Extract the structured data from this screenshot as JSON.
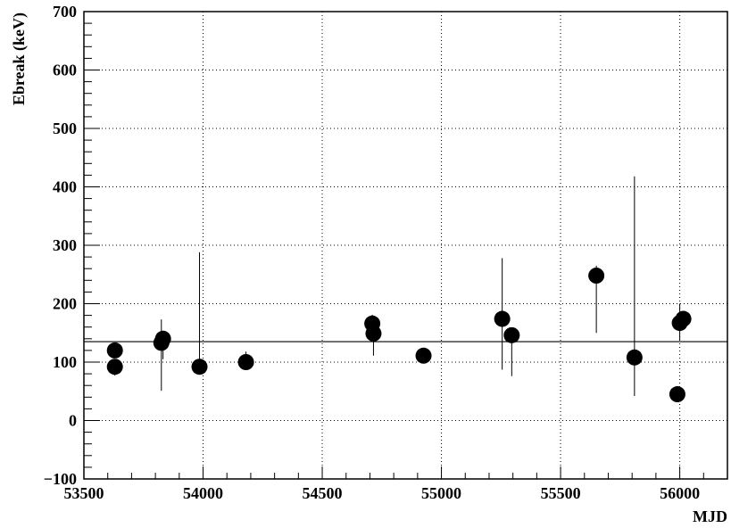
{
  "chart_data": {
    "type": "scatter",
    "title": "",
    "xlabel": "MJD",
    "ylabel": "Ebreak (keV)",
    "xlim": [
      53500,
      56200
    ],
    "ylim": [
      -100,
      700
    ],
    "x_ticks": [
      53500,
      54000,
      54500,
      55000,
      55500,
      56000
    ],
    "x_tick_labels": [
      "53500",
      "54000",
      "54500",
      "55000",
      "55500",
      "56000"
    ],
    "y_ticks": [
      -100,
      0,
      100,
      200,
      300,
      400,
      500,
      600,
      700
    ],
    "y_tick_labels": [
      "−100",
      "0",
      "100",
      "200",
      "300",
      "400",
      "500",
      "600",
      "700"
    ],
    "grid": true,
    "reference_line": {
      "y": 135
    },
    "points": [
      {
        "x": 53630,
        "y": 120,
        "err_lo": 10,
        "err_hi": 10
      },
      {
        "x": 53630,
        "y": 92,
        "err_lo": 15,
        "err_hi": 8
      },
      {
        "x": 53825,
        "y": 133,
        "err_lo": 82,
        "err_hi": 40
      },
      {
        "x": 53832,
        "y": 140,
        "err_lo": 35,
        "err_hi": 5
      },
      {
        "x": 53985,
        "y": 92,
        "err_lo": 3,
        "err_hi": 196
      },
      {
        "x": 54180,
        "y": 100,
        "err_lo": 5,
        "err_hi": 18
      },
      {
        "x": 54710,
        "y": 166,
        "err_lo": 8,
        "err_hi": 15
      },
      {
        "x": 54715,
        "y": 149,
        "err_lo": 38,
        "err_hi": 5
      },
      {
        "x": 54925,
        "y": 111,
        "err_lo": 4,
        "err_hi": 4
      },
      {
        "x": 55255,
        "y": 174,
        "err_lo": 87,
        "err_hi": 104
      },
      {
        "x": 55295,
        "y": 146,
        "err_lo": 70,
        "err_hi": 10
      },
      {
        "x": 55650,
        "y": 248,
        "err_lo": 98,
        "err_hi": 17
      },
      {
        "x": 55810,
        "y": 108,
        "err_lo": 66,
        "err_hi": 310
      },
      {
        "x": 55990,
        "y": 45,
        "err_lo": 5,
        "err_hi": 5
      },
      {
        "x": 56000,
        "y": 167,
        "err_lo": 30,
        "err_hi": 33
      },
      {
        "x": 56015,
        "y": 174,
        "err_lo": 8,
        "err_hi": 8
      }
    ]
  }
}
